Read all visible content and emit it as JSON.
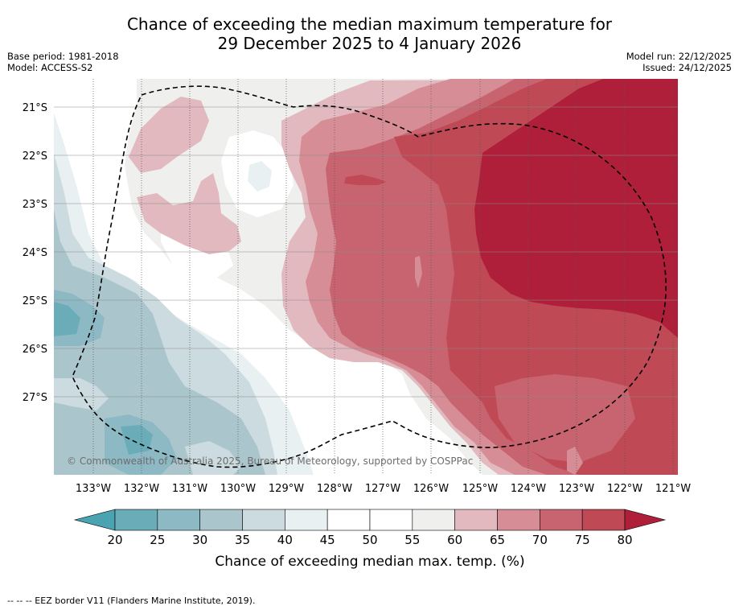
{
  "title": {
    "line1": "Chance of exceeding the median maximum temperature for",
    "line2": "29 December 2025 to 4 January 2026"
  },
  "meta": {
    "base_period": "Base period: 1981-2018",
    "model": "Model: ACCESS-S2",
    "model_run": "Model run: 22/12/2025",
    "issued": "Issued: 24/12/2025"
  },
  "map": {
    "lat_labels": [
      "21°S",
      "22°S",
      "23°S",
      "24°S",
      "25°S",
      "26°S",
      "27°S"
    ],
    "lon_labels": [
      "133°W",
      "132°W",
      "131°W",
      "130°W",
      "129°W",
      "128°W",
      "127°W",
      "126°W",
      "125°W",
      "124°W",
      "123°W",
      "122°W",
      "121°W"
    ],
    "copyright": "© Commonwealth of Australia 2025, Bureau of Meteorology, supported by COSPPac"
  },
  "colorbar": {
    "ticks": [
      "20",
      "25",
      "30",
      "35",
      "40",
      "45",
      "50",
      "55",
      "60",
      "65",
      "70",
      "75",
      "80"
    ],
    "colors": [
      "#6aacb8",
      "#8db9c4",
      "#aac6cc",
      "#ccdbdf",
      "#e9f0f2",
      "#ffffff",
      "#ffffff",
      "#efefed",
      "#e2b9bf",
      "#d68d96",
      "#c8646f",
      "#bf4955"
    ],
    "low_color": "#4aa3b0",
    "high_color": "#b01f3a",
    "label": "Chance of exceeding median max. temp. (%)"
  },
  "footer": {
    "legend": "--  --  -- EEZ border V11 (Flanders Marine Institute, 2019)."
  }
}
